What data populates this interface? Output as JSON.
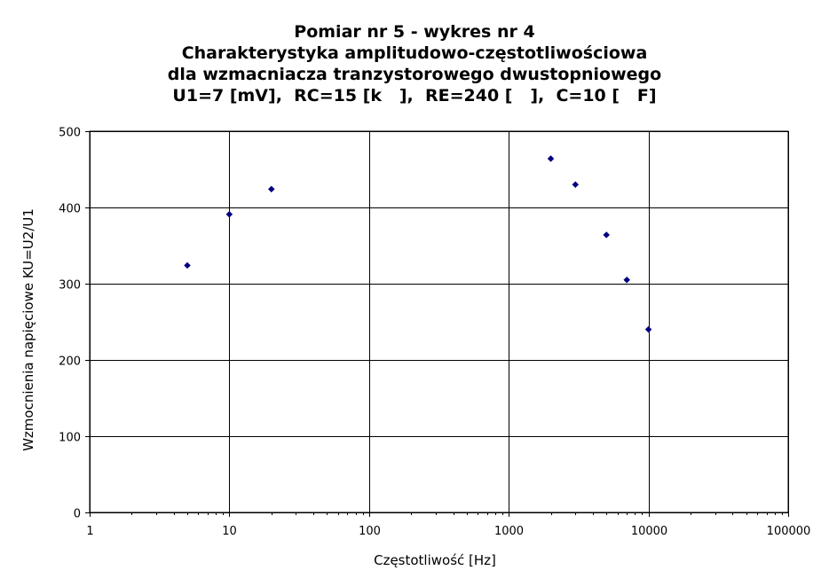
{
  "chart_data": {
    "type": "scatter",
    "title": [
      "Pomiar nr 5 - wykres nr 4",
      "Charakterystyka amplitudowo-częstotliwościowa",
      "dla wzmacniacza tranzystorowego dwustopniowego",
      "U1=7 [mV],  RC=15 [k   ],  RE=240 [   ],  C=10 [   F]"
    ],
    "xlabel": "Częstotliwość [Hz]",
    "ylabel": "Wzmocnienia napięciowe KU=U2/U1",
    "x_scale": "log",
    "xlim": [
      1,
      100000
    ],
    "ylim": [
      0,
      500
    ],
    "x_ticks": [
      1,
      10,
      100,
      1000,
      10000,
      100000
    ],
    "x_tick_labels": [
      "1",
      "10",
      "100",
      "1000",
      "10000",
      "100000"
    ],
    "y_ticks": [
      0,
      100,
      200,
      300,
      400,
      500
    ],
    "y_tick_labels": [
      "0",
      "100",
      "200",
      "300",
      "400",
      "500"
    ],
    "grid": true,
    "legend": "none",
    "marker": "diamond",
    "marker_color": "#000080",
    "series": [
      {
        "x": [
          5,
          10,
          20,
          2000,
          3000,
          5000,
          7000,
          10000
        ],
        "y": [
          324,
          391,
          424,
          464,
          430,
          364,
          305,
          240
        ]
      }
    ]
  }
}
